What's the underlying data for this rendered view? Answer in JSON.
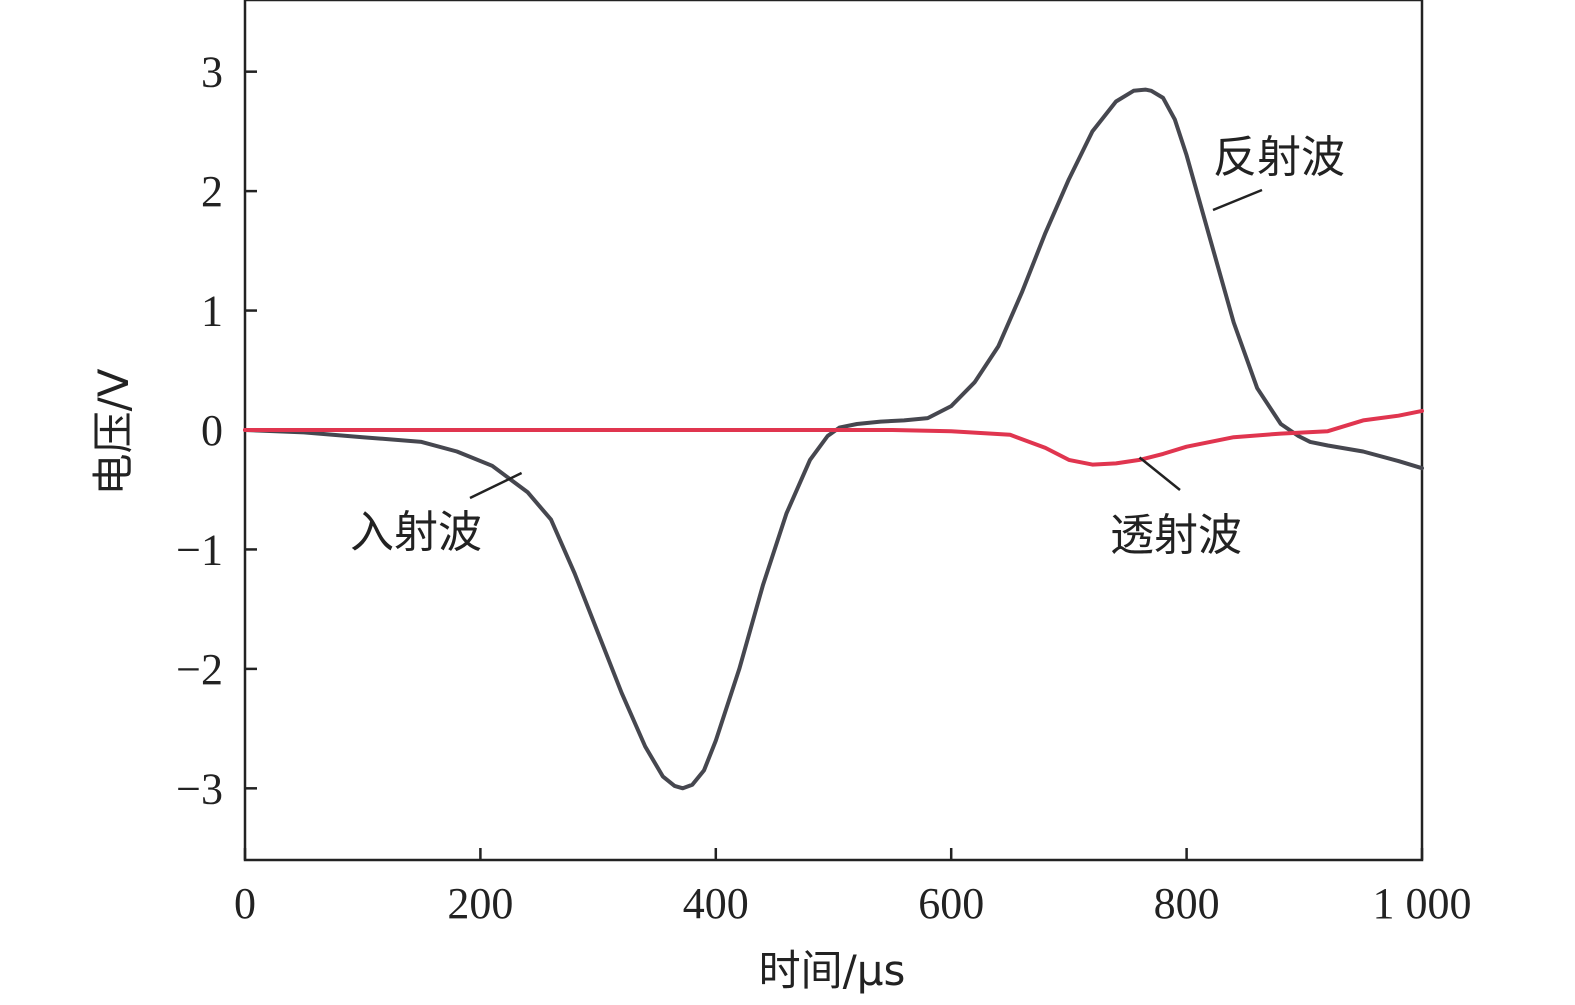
{
  "chart_data": {
    "type": "line",
    "title": "",
    "xlabel": "时间/μs",
    "ylabel": "电压/V",
    "xlim": [
      0,
      1000
    ],
    "ylim": [
      -3.6,
      3.6
    ],
    "grid": false,
    "legend": "none",
    "x_ticks": [
      {
        "value": 0,
        "label": "0"
      },
      {
        "value": 200,
        "label": "200"
      },
      {
        "value": 400,
        "label": "400"
      },
      {
        "value": 600,
        "label": "600"
      },
      {
        "value": 800,
        "label": "800"
      },
      {
        "value": 1000,
        "label": "1 000"
      }
    ],
    "y_ticks": [
      {
        "value": -3,
        "label": "−3"
      },
      {
        "value": -2,
        "label": "−2"
      },
      {
        "value": -1,
        "label": "−1"
      },
      {
        "value": 0,
        "label": "0"
      },
      {
        "value": 1,
        "label": "1"
      },
      {
        "value": 2,
        "label": "2"
      },
      {
        "value": 3,
        "label": "3"
      }
    ],
    "series": [
      {
        "color": "#46474f",
        "x": [
          0,
          50,
          100,
          150,
          180,
          210,
          240,
          260,
          280,
          300,
          320,
          340,
          355,
          365,
          372,
          380,
          390,
          400,
          420,
          440,
          460,
          480,
          495,
          505,
          520,
          540,
          560,
          580,
          600,
          620,
          640,
          660,
          680,
          700,
          720,
          740,
          755,
          765,
          770,
          780,
          790,
          800,
          820,
          840,
          860,
          880,
          895,
          905,
          920,
          950,
          980,
          1000
        ],
        "y": [
          0.0,
          -0.02,
          -0.06,
          -0.1,
          -0.18,
          -0.3,
          -0.52,
          -0.75,
          -1.2,
          -1.7,
          -2.2,
          -2.65,
          -2.9,
          -2.98,
          -3.0,
          -2.97,
          -2.85,
          -2.6,
          -2.0,
          -1.3,
          -0.7,
          -0.25,
          -0.05,
          0.02,
          0.05,
          0.07,
          0.08,
          0.1,
          0.2,
          0.4,
          0.7,
          1.15,
          1.65,
          2.1,
          2.5,
          2.75,
          2.84,
          2.85,
          2.84,
          2.78,
          2.6,
          2.3,
          1.6,
          0.9,
          0.35,
          0.05,
          -0.05,
          -0.1,
          -0.13,
          -0.18,
          -0.26,
          -0.32
        ]
      },
      {
        "color": "#e0354f",
        "x": [
          0,
          100,
          200,
          300,
          400,
          500,
          550,
          600,
          650,
          680,
          700,
          720,
          740,
          760,
          780,
          800,
          840,
          880,
          920,
          950,
          980,
          1000
        ],
        "y": [
          0.0,
          0.0,
          0.0,
          0.0,
          0.0,
          0.0,
          0.0,
          -0.01,
          -0.04,
          -0.15,
          -0.25,
          -0.29,
          -0.28,
          -0.25,
          -0.2,
          -0.14,
          -0.06,
          -0.03,
          -0.01,
          0.08,
          0.12,
          0.16
        ]
      }
    ],
    "annotations": [
      {
        "text": "入射波",
        "x": 250,
        "y": -0.8
      },
      {
        "text": "反射波",
        "x": 900,
        "y": 2.35
      },
      {
        "text": "透射波",
        "x": 800,
        "y": -0.85
      }
    ]
  }
}
